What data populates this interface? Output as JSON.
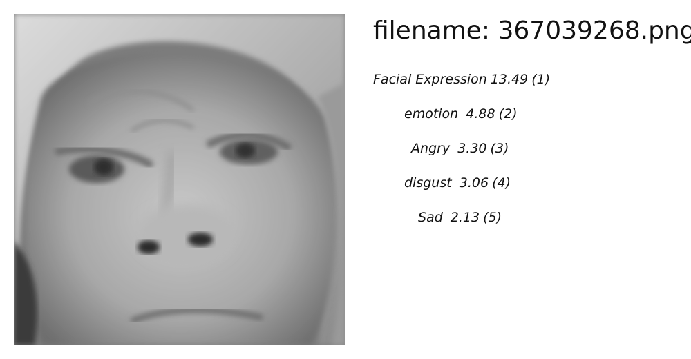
{
  "filename_label": "filename: 367039268.png",
  "photo": {
    "description_icon": "grayscale-face-photo",
    "colors": {
      "background": "#9a9a9a"
    }
  },
  "predictions": [
    {
      "label": "Facial Expression",
      "score": "13.49",
      "rank": "(1)"
    },
    {
      "label": "emotion",
      "score": " 4.88",
      "rank": "(2)"
    },
    {
      "label": "Angry",
      "score": " 3.30",
      "rank": "(3)"
    },
    {
      "label": "disgust",
      "score": " 3.06",
      "rank": "(4)"
    },
    {
      "label": "Sad",
      "score": " 2.13",
      "rank": "(5)"
    }
  ]
}
